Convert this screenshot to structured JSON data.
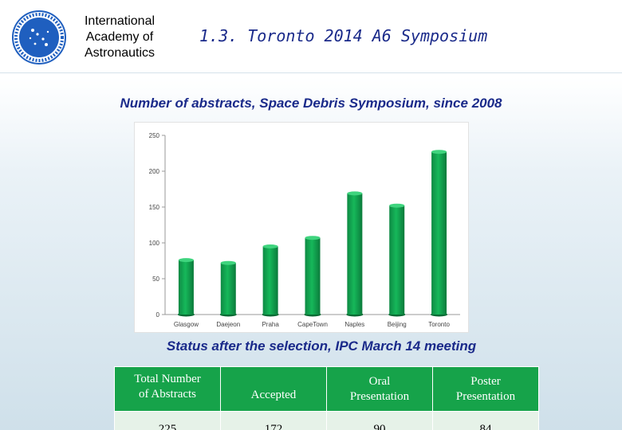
{
  "header": {
    "org_name_lines": [
      "International",
      "Academy of",
      "Astronautics"
    ],
    "slide_title": "1.3. Toronto 2014 A6 Symposium",
    "logo_icon": "iaa-logo-icon"
  },
  "colors": {
    "title_blue": "#1a2a8a",
    "bar_green": "#16b85a",
    "table_header_green": "#16a34a"
  },
  "chart_data": {
    "type": "bar",
    "title": "Number of abstracts, Space Debris Symposium, since 2008",
    "xlabel": "",
    "ylabel": "",
    "categories": [
      "Glasgow",
      "Daejeon",
      "Praha",
      "CapeTown",
      "Naples",
      "Beijing",
      "Toronto"
    ],
    "values": [
      76,
      72,
      95,
      107,
      169,
      152,
      227
    ],
    "ylim": [
      0,
      250
    ],
    "yticks": [
      0,
      50,
      100,
      150,
      200,
      250
    ],
    "grid": false,
    "legend": "none"
  },
  "status": {
    "title": "Status after the selection, IPC March 14 meeting",
    "headers": [
      [
        "Total Number",
        "of Abstracts"
      ],
      [
        "Accepted"
      ],
      [
        "Oral",
        "Presentation"
      ],
      [
        "Poster",
        "Presentation"
      ]
    ],
    "values": [
      "225",
      "172",
      "90",
      "84"
    ]
  }
}
